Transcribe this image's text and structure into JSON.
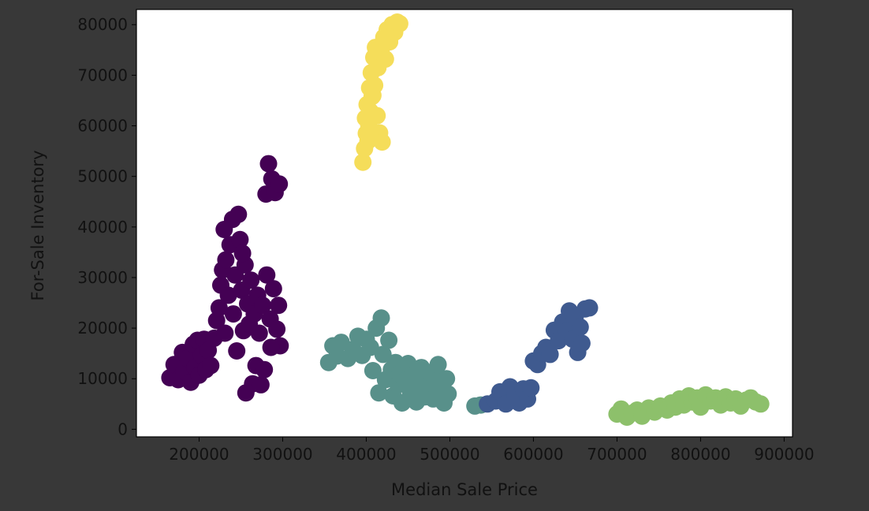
{
  "chart_data": {
    "type": "scatter",
    "title": "",
    "xlabel": "Median Sale Price",
    "ylabel": "For-Sale Inventory",
    "xlim": [
      125000,
      910000
    ],
    "ylim": [
      -1500,
      83000
    ],
    "xticks": [
      200000,
      300000,
      400000,
      500000,
      600000,
      700000,
      800000,
      900000
    ],
    "xtick_labels": [
      "200000",
      "300000",
      "400000",
      "500000",
      "600000",
      "700000",
      "800000",
      "900000"
    ],
    "yticks": [
      0,
      10000,
      20000,
      30000,
      40000,
      50000,
      60000,
      70000,
      80000
    ],
    "ytick_labels": [
      "0",
      "10000",
      "20000",
      "30000",
      "40000",
      "50000",
      "60000",
      "70000",
      "80000"
    ],
    "grid": false,
    "legend": "none",
    "colormap": "viridis",
    "series": [
      {
        "color": "#440154",
        "points": [
          [
            165000,
            10200
          ],
          [
            170000,
            12800
          ],
          [
            175000,
            9800
          ],
          [
            180000,
            15200
          ],
          [
            182000,
            11500
          ],
          [
            186000,
            14000
          ],
          [
            190000,
            9300
          ],
          [
            193000,
            16800
          ],
          [
            195000,
            12200
          ],
          [
            198000,
            17600
          ],
          [
            200000,
            10700
          ],
          [
            203000,
            14600
          ],
          [
            206000,
            17800
          ],
          [
            208000,
            11800
          ],
          [
            211000,
            15600
          ],
          [
            214000,
            12600
          ],
          [
            218000,
            18000
          ],
          [
            221000,
            21500
          ],
          [
            224000,
            24000
          ],
          [
            226000,
            28500
          ],
          [
            228000,
            31500
          ],
          [
            230000,
            39500
          ],
          [
            232000,
            33500
          ],
          [
            235000,
            26500
          ],
          [
            237000,
            36500
          ],
          [
            240000,
            41500
          ],
          [
            241000,
            22800
          ],
          [
            243000,
            30500
          ],
          [
            245000,
            15500
          ],
          [
            247000,
            42500
          ],
          [
            249000,
            37500
          ],
          [
            251000,
            27500
          ],
          [
            253000,
            19500
          ],
          [
            255000,
            32500
          ],
          [
            256000,
            7200
          ],
          [
            258000,
            24800
          ],
          [
            260000,
            20800
          ],
          [
            262000,
            29500
          ],
          [
            264000,
            9000
          ],
          [
            266000,
            22800
          ],
          [
            268000,
            12600
          ],
          [
            270000,
            26500
          ],
          [
            272000,
            19000
          ],
          [
            274000,
            8800
          ],
          [
            276000,
            24500
          ],
          [
            278000,
            11800
          ],
          [
            280000,
            46500
          ],
          [
            281000,
            30500
          ],
          [
            283000,
            52500
          ],
          [
            285000,
            21800
          ],
          [
            287000,
            49500
          ],
          [
            289000,
            27800
          ],
          [
            291000,
            46800
          ],
          [
            293000,
            19800
          ],
          [
            295000,
            24500
          ],
          [
            296000,
            48500
          ],
          [
            297000,
            16500
          ],
          [
            286000,
            16200
          ],
          [
            231000,
            19000
          ],
          [
            252000,
            34800
          ]
        ]
      },
      {
        "color": "#58908a",
        "points": [
          [
            355000,
            13200
          ],
          [
            360000,
            16500
          ],
          [
            365000,
            14500
          ],
          [
            370000,
            17200
          ],
          [
            378000,
            14000
          ],
          [
            384000,
            15800
          ],
          [
            390000,
            18400
          ],
          [
            395000,
            14600
          ],
          [
            400000,
            17800
          ],
          [
            405000,
            16200
          ],
          [
            408000,
            11600
          ],
          [
            412000,
            20000
          ],
          [
            415000,
            7200
          ],
          [
            418000,
            22000
          ],
          [
            420000,
            14800
          ],
          [
            423000,
            9800
          ],
          [
            427000,
            17600
          ],
          [
            430000,
            11800
          ],
          [
            432000,
            6600
          ],
          [
            435000,
            13200
          ],
          [
            438000,
            8800
          ],
          [
            440000,
            11000
          ],
          [
            443000,
            5200
          ],
          [
            446000,
            9600
          ],
          [
            450000,
            13000
          ],
          [
            453000,
            7000
          ],
          [
            456000,
            10600
          ],
          [
            460000,
            5400
          ],
          [
            463000,
            9200
          ],
          [
            466000,
            12200
          ],
          [
            470000,
            6400
          ],
          [
            473000,
            8600
          ],
          [
            476000,
            11200
          ],
          [
            480000,
            6000
          ],
          [
            483000,
            9800
          ],
          [
            486000,
            12800
          ],
          [
            490000,
            7400
          ],
          [
            493000,
            5200
          ],
          [
            496000,
            10000
          ],
          [
            498000,
            7000
          ],
          [
            530000,
            4600
          ],
          [
            537000,
            4800
          ]
        ]
      },
      {
        "color": "#3f5a8f",
        "points": [
          [
            545000,
            5000
          ],
          [
            555000,
            5600
          ],
          [
            560000,
            7400
          ],
          [
            567000,
            5000
          ],
          [
            572000,
            8400
          ],
          [
            578000,
            6800
          ],
          [
            583000,
            5200
          ],
          [
            588000,
            8000
          ],
          [
            593000,
            6000
          ],
          [
            597000,
            8200
          ],
          [
            600000,
            13500
          ],
          [
            605000,
            12800
          ],
          [
            610000,
            15000
          ],
          [
            615000,
            16200
          ],
          [
            620000,
            14800
          ],
          [
            625000,
            19600
          ],
          [
            630000,
            17500
          ],
          [
            635000,
            21200
          ],
          [
            640000,
            19400
          ],
          [
            643000,
            23400
          ],
          [
            647000,
            17800
          ],
          [
            650000,
            22200
          ],
          [
            653000,
            15200
          ],
          [
            656000,
            20200
          ],
          [
            658000,
            17000
          ],
          [
            662000,
            23800
          ],
          [
            667000,
            24000
          ]
        ]
      },
      {
        "color": "#8dc06b",
        "points": [
          [
            700000,
            3000
          ],
          [
            705000,
            4000
          ],
          [
            712000,
            2400
          ],
          [
            718000,
            3200
          ],
          [
            724000,
            3800
          ],
          [
            730000,
            2600
          ],
          [
            738000,
            4200
          ],
          [
            745000,
            3400
          ],
          [
            752000,
            4600
          ],
          [
            760000,
            3800
          ],
          [
            765000,
            5200
          ],
          [
            770000,
            4400
          ],
          [
            775000,
            6000
          ],
          [
            780000,
            4800
          ],
          [
            786000,
            6600
          ],
          [
            790000,
            5400
          ],
          [
            796000,
            6200
          ],
          [
            800000,
            4400
          ],
          [
            806000,
            6800
          ],
          [
            812000,
            5600
          ],
          [
            818000,
            6200
          ],
          [
            824000,
            4800
          ],
          [
            830000,
            6400
          ],
          [
            836000,
            5200
          ],
          [
            842000,
            6000
          ],
          [
            848000,
            4600
          ],
          [
            855000,
            5800
          ],
          [
            860000,
            6200
          ],
          [
            866000,
            5400
          ],
          [
            872000,
            5000
          ]
        ]
      },
      {
        "color": "#f5dd5a",
        "points": [
          [
            396000,
            52800
          ],
          [
            398000,
            55500
          ],
          [
            400000,
            58500
          ],
          [
            399000,
            61500
          ],
          [
            401000,
            64200
          ],
          [
            403000,
            60200
          ],
          [
            404000,
            67500
          ],
          [
            405000,
            62800
          ],
          [
            406000,
            70500
          ],
          [
            407000,
            65800
          ],
          [
            409000,
            73500
          ],
          [
            410000,
            68000
          ],
          [
            411000,
            75500
          ],
          [
            413000,
            62000
          ],
          [
            414000,
            71500
          ],
          [
            416000,
            58600
          ],
          [
            418000,
            74500
          ],
          [
            419000,
            56800
          ],
          [
            421000,
            77500
          ],
          [
            423000,
            73200
          ],
          [
            425000,
            79000
          ],
          [
            428000,
            76600
          ],
          [
            431000,
            80000
          ],
          [
            434000,
            78500
          ],
          [
            437000,
            80500
          ],
          [
            440000,
            80200
          ],
          [
            402000,
            57000
          ],
          [
            408000,
            66000
          ]
        ]
      }
    ]
  }
}
